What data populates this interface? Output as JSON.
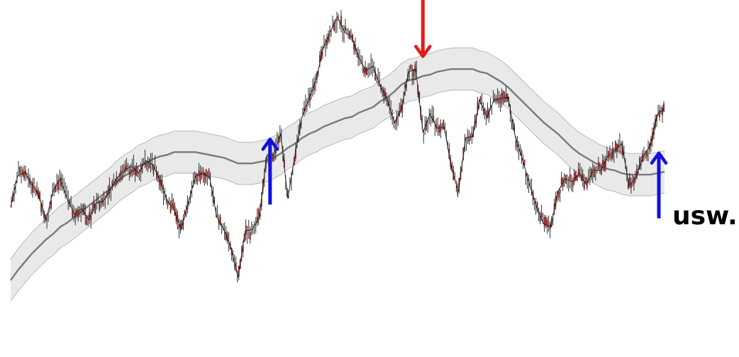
{
  "colors": {
    "band_fill": "#e9e9e9",
    "band_edge": "#b8b8b8",
    "centerline": "#7a7a7a",
    "price_line": "#1a1a1a",
    "price_accent": "#8b1a1a",
    "buy_arrow": "#1010e0",
    "sell_arrow": "#e81818",
    "text": "#000000"
  },
  "annotation": {
    "text": "usw."
  },
  "chart_data": {
    "type": "line",
    "title": "",
    "xlabel": "",
    "ylabel": "",
    "axes_visible": false,
    "grid": false,
    "x": [
      0,
      10,
      20,
      30,
      40,
      50,
      60,
      70,
      80,
      90,
      100,
      110,
      120,
      130,
      140,
      150,
      160,
      170,
      180,
      190,
      200,
      210,
      220,
      230,
      240,
      250,
      260,
      270,
      280,
      290,
      300,
      310,
      320,
      330,
      340,
      350,
      360,
      370,
      380,
      390,
      400,
      410,
      420,
      430,
      440,
      450,
      460,
      470,
      480,
      490,
      500,
      510,
      520,
      530,
      540,
      550,
      560,
      570,
      580,
      590,
      600,
      610,
      620,
      630,
      640,
      650,
      660,
      670,
      680,
      690,
      700,
      710,
      720,
      730,
      740,
      750,
      760,
      770,
      780,
      790,
      800,
      810,
      820,
      830,
      840,
      850,
      860,
      870,
      880,
      890,
      900,
      910,
      920
    ],
    "series": [
      {
        "role": "price",
        "values": [
          50,
          72,
          75,
          66,
          58,
          41,
          62,
          70,
          55,
          45,
          49,
          41,
          53,
          54,
          62,
          71,
          76,
          79,
          74,
          83,
          80,
          69,
          55,
          48,
          34,
          53,
          72,
          74,
          71,
          43,
          34,
          21,
          0,
          33,
          34,
          43,
          86,
          87,
          102,
          56,
          87,
          114,
          127,
          141,
          163,
          175,
          185,
          174,
          171,
          156,
          147,
          150,
          136,
          126,
          110,
          120,
          146,
          148,
          103,
          116,
          106,
          107,
          78,
          61,
          99,
          100,
          126,
          114,
          126,
          127,
          128,
          100,
          84,
          66,
          50,
          38,
          36,
          61,
          70,
          68,
          74,
          66,
          76,
          76,
          86,
          90,
          95,
          65,
          71,
          86,
          94,
          116,
          120
        ]
      },
      {
        "role": "moving_average",
        "values": [
          -2,
          5,
          11,
          17,
          22,
          27,
          31,
          36,
          39,
          43,
          47,
          51,
          55,
          59,
          63,
          68,
          72,
          75,
          79,
          81,
          84,
          86,
          87,
          89,
          89,
          89,
          89,
          88,
          87,
          86,
          85,
          83,
          81,
          81,
          81,
          82,
          83,
          85,
          88,
          92,
          95,
          99,
          102,
          104,
          107,
          109,
          111,
          113,
          114,
          117,
          119,
          121,
          125,
          128,
          132,
          137,
          140,
          141,
          143,
          144,
          146,
          147,
          148,
          148,
          148,
          148,
          146,
          145,
          142,
          139,
          135,
          130,
          125,
          120,
          115,
          110,
          106,
          102,
          97,
          92,
          88,
          85,
          82,
          79,
          77,
          76,
          74,
          73,
          73,
          73,
          73,
          74,
          75
        ]
      }
    ],
    "band_half_width": 15,
    "ylim": [
      -55,
      193
    ],
    "arrows": [
      {
        "direction": "up",
        "color": "blue",
        "x": 365
      },
      {
        "direction": "down",
        "color": "red",
        "x": 580
      },
      {
        "direction": "up",
        "color": "blue",
        "x": 912
      }
    ]
  }
}
